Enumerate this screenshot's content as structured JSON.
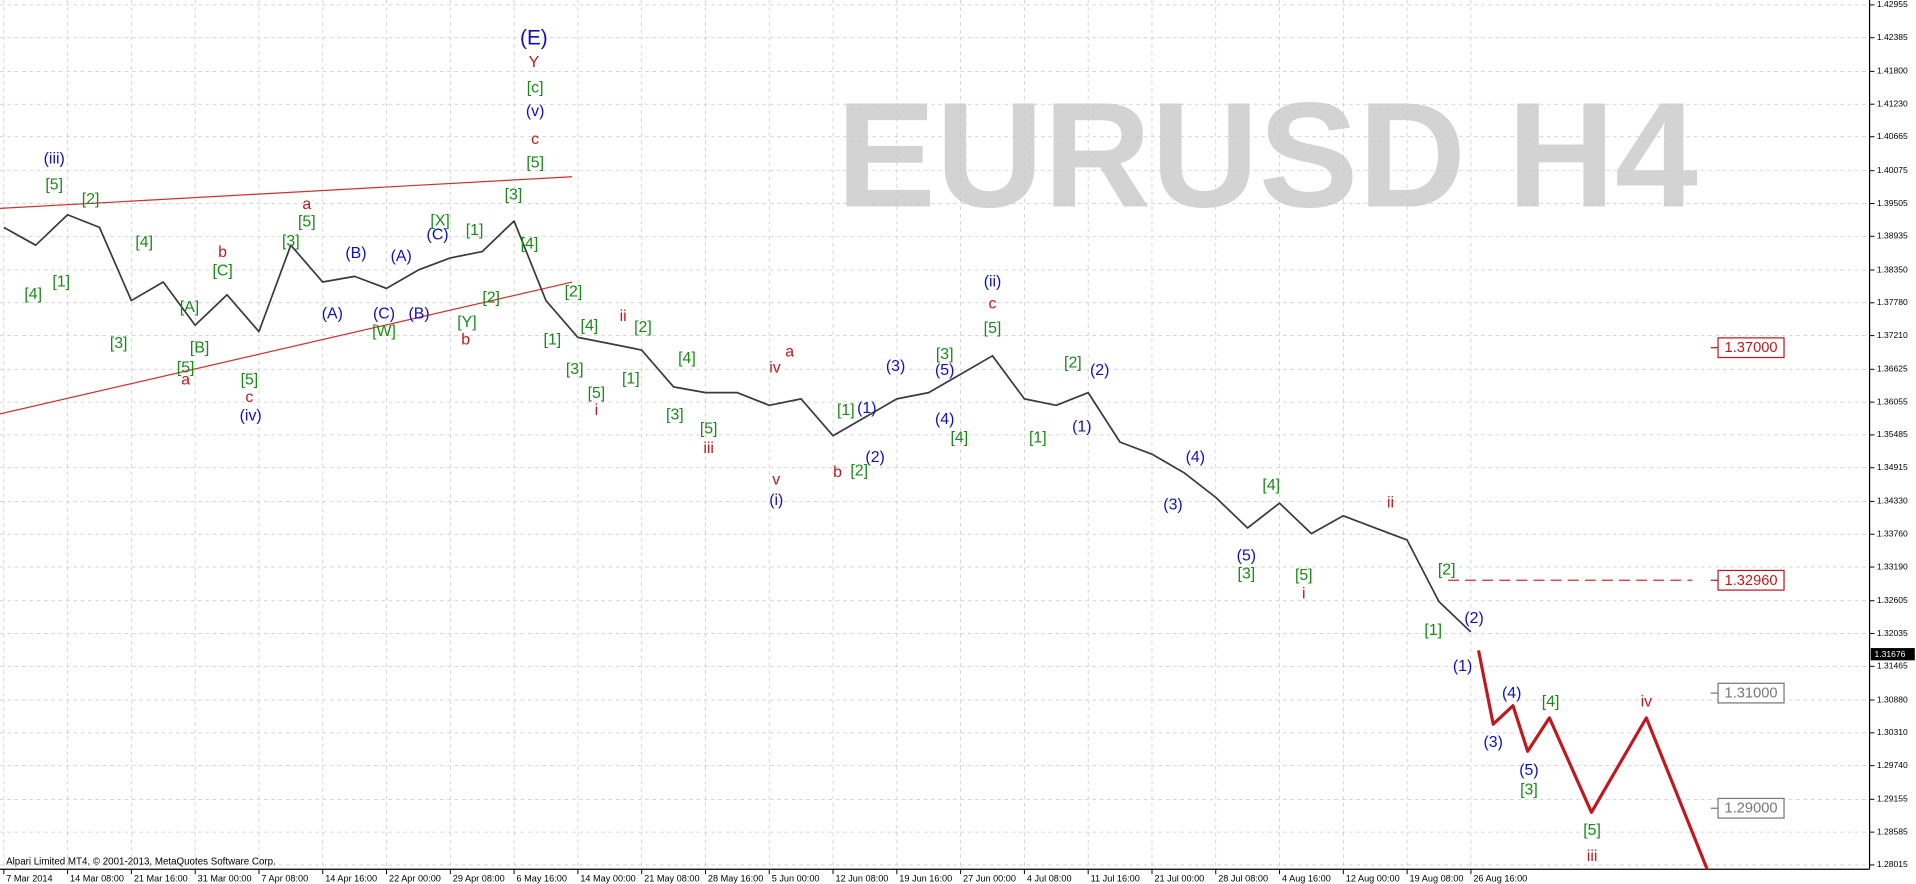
{
  "chart_data": {
    "type": "line",
    "watermark": "EURUSD H4",
    "footer": "Alpari Limited MT4, © 2001-2013, MetaQuotes Software Corp.",
    "xlim": [
      -0.06,
      29.25
    ],
    "ylim": [
      1.2794,
      1.4304
    ],
    "grid": true,
    "xticks": [
      {
        "value": 0,
        "label": "7 Mar 2014"
      },
      {
        "value": 1,
        "label": "14 Mar 08:00"
      },
      {
        "value": 2,
        "label": "21 Mar 16:00"
      },
      {
        "value": 3,
        "label": "31 Mar 00:00"
      },
      {
        "value": 4,
        "label": "7 Apr 08:00"
      },
      {
        "value": 5,
        "label": "14 Apr 16:00"
      },
      {
        "value": 6,
        "label": "22 Apr 00:00"
      },
      {
        "value": 7,
        "label": "29 Apr 08:00"
      },
      {
        "value": 8,
        "label": "6 May 16:00"
      },
      {
        "value": 9,
        "label": "14 May 00:00"
      },
      {
        "value": 10,
        "label": "21 May 08:00"
      },
      {
        "value": 11,
        "label": "28 May 16:00"
      },
      {
        "value": 12,
        "label": "5 Jun 00:00"
      },
      {
        "value": 13,
        "label": "12 Jun 08:00"
      },
      {
        "value": 14,
        "label": "19 Jun 16:00"
      },
      {
        "value": 15,
        "label": "27 Jun 00:00"
      },
      {
        "value": 16,
        "label": "4 Jul 08:00"
      },
      {
        "value": 17,
        "label": "11 Jul 16:00"
      },
      {
        "value": 18,
        "label": "21 Jul 00:00"
      },
      {
        "value": 19,
        "label": "28 Jul 08:00"
      },
      {
        "value": 20,
        "label": "4 Aug 16:00"
      },
      {
        "value": 21,
        "label": "12 Aug 00:00"
      },
      {
        "value": 22,
        "label": "19 Aug 08:00"
      },
      {
        "value": 23,
        "label": "26 Aug 16:00"
      }
    ],
    "yticks": [
      1.42955,
      1.42385,
      {
        "value": 1.418,
        "label": "1.41800"
      },
      {
        "value": 1.4123,
        "label": "1.41230"
      },
      1.40665,
      1.40075,
      1.39505,
      1.38935,
      {
        "value": 1.3835,
        "label": "1.38350"
      },
      {
        "value": 1.3778,
        "label": "1.37780"
      },
      {
        "value": 1.3721,
        "label": "1.37210"
      },
      1.36625,
      1.36055,
      1.35485,
      1.34915,
      {
        "value": 1.3433,
        "label": "1.34330"
      },
      {
        "value": 1.3376,
        "label": "1.33760"
      },
      {
        "value": 1.3319,
        "label": "1.33190"
      },
      1.32605,
      1.32035,
      1.31465,
      {
        "value": 1.3088,
        "label": "1.30880"
      },
      {
        "value": 1.3031,
        "label": "1.30310"
      },
      {
        "value": 1.2974,
        "label": "1.29740"
      },
      1.29155,
      1.28585,
      1.28015
    ],
    "series": [
      {
        "color": "#3a3a3a",
        "x": [
          0,
          0.5,
          1,
          1.5,
          2,
          2.5,
          3,
          3.5,
          4,
          4.5,
          5,
          5.5,
          6,
          6.5,
          7,
          7.5,
          8,
          8.5,
          9,
          9.5,
          10,
          10.5,
          11,
          11.5,
          12,
          12.5,
          13,
          13.5,
          14,
          14.5,
          15,
          15.5,
          16,
          16.5,
          17,
          17.5,
          18,
          18.5,
          19,
          19.5,
          20,
          20.5,
          21,
          21.5,
          22,
          22.5,
          23
        ],
        "values": [
          1.3909,
          1.3878,
          1.3931,
          1.3909,
          1.3782,
          1.3814,
          1.3739,
          1.3792,
          1.3728,
          1.3878,
          1.3814,
          1.3824,
          1.3803,
          1.3835,
          1.3856,
          1.3867,
          1.392,
          1.3782,
          1.3718,
          1.3707,
          1.3696,
          1.3632,
          1.3622,
          1.3622,
          1.36,
          1.3611,
          1.3547,
          1.3579,
          1.3611,
          1.3622,
          1.3654,
          1.3686,
          1.3611,
          1.36,
          1.3622,
          1.3536,
          1.3515,
          1.3483,
          1.344,
          1.3387,
          1.343,
          1.3377,
          1.3408,
          1.3387,
          1.3366,
          1.3259,
          1.3206
        ]
      },
      {
        "color": "#c0181e",
        "x": [
          23.12,
          23.35,
          23.66,
          23.89,
          24.23,
          24.89,
          25.75,
          26.72
        ],
        "values": [
          1.3174,
          1.3046,
          1.3078,
          1.2999,
          1.3057,
          1.2893,
          1.3057,
          1.279
        ]
      }
    ],
    "trend_lines": [
      {
        "color": "#d03030",
        "x": [
          -0.06,
          8.91
        ],
        "values": [
          1.3942,
          1.3997
        ]
      },
      {
        "color": "#d03030",
        "x": [
          -0.06,
          8.91
        ],
        "values": [
          1.3585,
          1.3814
        ]
      }
    ],
    "dashed_line": {
      "color": "#d03030",
      "x": [
        22.64,
        26.47
      ],
      "value": 1.3296
    },
    "levels": [
      {
        "value": 1.37,
        "label": "1.37000",
        "color": "#c0181e"
      },
      {
        "value": 1.3296,
        "label": "1.32960",
        "color": "#c0181e"
      },
      {
        "value": 1.31,
        "label": "1.31000",
        "color": "#777777"
      },
      {
        "value": 1.29,
        "label": "1.29000",
        "color": "#777777"
      }
    ],
    "current_price": 1.31676,
    "annotations": [
      {
        "text": "(E)",
        "x": 8.31,
        "y": 1.4236,
        "color": "#1010c0"
      },
      {
        "text": "Y",
        "x": 8.31,
        "y": 1.4195,
        "color": "#c0181e"
      },
      {
        "text": "[c]",
        "x": 8.33,
        "y": 1.4151,
        "color": "#178a17"
      },
      {
        "text": "(v)",
        "x": 8.33,
        "y": 1.411,
        "color": "#1010c0"
      },
      {
        "text": "c",
        "x": 8.33,
        "y": 1.4061,
        "color": "#c0181e"
      },
      {
        "text": "[5]",
        "x": 8.33,
        "y": 1.402,
        "color": "#178a17"
      },
      {
        "text": "(iii)",
        "x": 0.79,
        "y": 1.4027,
        "color": "#1010c0"
      },
      {
        "text": "[5]",
        "x": 0.79,
        "y": 1.3982,
        "color": "#178a17"
      },
      {
        "text": "[2]",
        "x": 1.36,
        "y": 1.3957,
        "color": "#178a17"
      },
      {
        "text": "[4]",
        "x": 0.46,
        "y": 1.3792,
        "color": "#178a17"
      },
      {
        "text": "[1]",
        "x": 0.9,
        "y": 1.3814,
        "color": "#178a17"
      },
      {
        "text": "[4]",
        "x": 2.2,
        "y": 1.3882,
        "color": "#178a17"
      },
      {
        "text": "[3]",
        "x": 1.8,
        "y": 1.3707,
        "color": "#178a17"
      },
      {
        "text": "b",
        "x": 3.43,
        "y": 1.3865,
        "color": "#c0181e"
      },
      {
        "text": "[C]",
        "x": 3.43,
        "y": 1.3833,
        "color": "#178a17"
      },
      {
        "text": "[A]",
        "x": 2.91,
        "y": 1.3769,
        "color": "#178a17"
      },
      {
        "text": "[B]",
        "x": 3.07,
        "y": 1.3699,
        "color": "#178a17"
      },
      {
        "text": "[5]",
        "x": 2.85,
        "y": 1.3664,
        "color": "#178a17"
      },
      {
        "text": "a",
        "x": 2.85,
        "y": 1.3643,
        "color": "#c0181e"
      },
      {
        "text": "[5]",
        "x": 3.85,
        "y": 1.3643,
        "color": "#178a17"
      },
      {
        "text": "c",
        "x": 3.85,
        "y": 1.3613,
        "color": "#c0181e"
      },
      {
        "text": "(iv)",
        "x": 3.87,
        "y": 1.3581,
        "color": "#1010c0"
      },
      {
        "text": "a",
        "x": 4.75,
        "y": 1.3948,
        "color": "#c0181e"
      },
      {
        "text": "[5]",
        "x": 4.75,
        "y": 1.3918,
        "color": "#178a17"
      },
      {
        "text": "[3]",
        "x": 4.5,
        "y": 1.3884,
        "color": "#178a17"
      },
      {
        "text": "(B)",
        "x": 5.52,
        "y": 1.3863,
        "color": "#1010c0"
      },
      {
        "text": "(A)",
        "x": 5.15,
        "y": 1.3758,
        "color": "#1010c0"
      },
      {
        "text": "(A)",
        "x": 6.23,
        "y": 1.3858,
        "color": "#1010c0"
      },
      {
        "text": "(C)",
        "x": 5.96,
        "y": 1.3758,
        "color": "#1010c0"
      },
      {
        "text": "[W]",
        "x": 5.96,
        "y": 1.3728,
        "color": "#178a17"
      },
      {
        "text": "(B)",
        "x": 6.51,
        "y": 1.3758,
        "color": "#1010c0"
      },
      {
        "text": "(C)",
        "x": 6.8,
        "y": 1.3895,
        "color": "#1010c0"
      },
      {
        "text": "[X]",
        "x": 6.84,
        "y": 1.392,
        "color": "#178a17"
      },
      {
        "text": "[Y]",
        "x": 7.26,
        "y": 1.3743,
        "color": "#178a17"
      },
      {
        "text": "b",
        "x": 7.24,
        "y": 1.3713,
        "color": "#c0181e"
      },
      {
        "text": "[1]",
        "x": 7.38,
        "y": 1.3903,
        "color": "#178a17"
      },
      {
        "text": "[2]",
        "x": 7.64,
        "y": 1.3786,
        "color": "#178a17"
      },
      {
        "text": "[3]",
        "x": 7.99,
        "y": 1.3965,
        "color": "#178a17"
      },
      {
        "text": "[4]",
        "x": 8.24,
        "y": 1.388,
        "color": "#178a17"
      },
      {
        "text": "[2]",
        "x": 8.93,
        "y": 1.3796,
        "color": "#178a17"
      },
      {
        "text": "[1]",
        "x": 8.6,
        "y": 1.3713,
        "color": "#178a17"
      },
      {
        "text": "[4]",
        "x": 9.18,
        "y": 1.3737,
        "color": "#178a17"
      },
      {
        "text": "[3]",
        "x": 8.95,
        "y": 1.3662,
        "color": "#178a17"
      },
      {
        "text": "[5]",
        "x": 9.29,
        "y": 1.362,
        "color": "#178a17"
      },
      {
        "text": "i",
        "x": 9.29,
        "y": 1.359,
        "color": "#c0181e"
      },
      {
        "text": "ii",
        "x": 9.71,
        "y": 1.3754,
        "color": "#c0181e"
      },
      {
        "text": "[2]",
        "x": 10.02,
        "y": 1.3735,
        "color": "#178a17"
      },
      {
        "text": "[1]",
        "x": 9.83,
        "y": 1.3645,
        "color": "#178a17"
      },
      {
        "text": "[4]",
        "x": 10.71,
        "y": 1.3681,
        "color": "#178a17"
      },
      {
        "text": "[3]",
        "x": 10.52,
        "y": 1.3583,
        "color": "#178a17"
      },
      {
        "text": "[5]",
        "x": 11.05,
        "y": 1.3558,
        "color": "#178a17"
      },
      {
        "text": "iii",
        "x": 11.05,
        "y": 1.3524,
        "color": "#c0181e"
      },
      {
        "text": "iv",
        "x": 12.09,
        "y": 1.3664,
        "color": "#c0181e"
      },
      {
        "text": "a",
        "x": 12.32,
        "y": 1.3692,
        "color": "#c0181e"
      },
      {
        "text": "v",
        "x": 12.11,
        "y": 1.347,
        "color": "#c0181e"
      },
      {
        "text": "(i)",
        "x": 12.11,
        "y": 1.3434,
        "color": "#1010c0"
      },
      {
        "text": "b",
        "x": 13.07,
        "y": 1.3483,
        "color": "#c0181e"
      },
      {
        "text": "[2]",
        "x": 13.41,
        "y": 1.3485,
        "color": "#178a17"
      },
      {
        "text": "[1]",
        "x": 13.2,
        "y": 1.359,
        "color": "#178a17"
      },
      {
        "text": "(1)",
        "x": 13.53,
        "y": 1.3594,
        "color": "#1010c0"
      },
      {
        "text": "(2)",
        "x": 13.66,
        "y": 1.3509,
        "color": "#1010c0"
      },
      {
        "text": "(3)",
        "x": 13.98,
        "y": 1.3667,
        "color": "#1010c0"
      },
      {
        "text": "[3]",
        "x": 14.75,
        "y": 1.3688,
        "color": "#178a17"
      },
      {
        "text": "(5)",
        "x": 14.75,
        "y": 1.366,
        "color": "#1010c0"
      },
      {
        "text": "(4)",
        "x": 14.75,
        "y": 1.3575,
        "color": "#1010c0"
      },
      {
        "text": "[4]",
        "x": 14.98,
        "y": 1.3543,
        "color": "#178a17"
      },
      {
        "text": "(ii)",
        "x": 15.5,
        "y": 1.3814,
        "color": "#1010c0"
      },
      {
        "text": "c",
        "x": 15.5,
        "y": 1.3775,
        "color": "#c0181e"
      },
      {
        "text": "[5]",
        "x": 15.5,
        "y": 1.3733,
        "color": "#178a17"
      },
      {
        "text": "[2]",
        "x": 16.76,
        "y": 1.3673,
        "color": "#178a17"
      },
      {
        "text": "(2)",
        "x": 17.18,
        "y": 1.366,
        "color": "#1010c0"
      },
      {
        "text": "(1)",
        "x": 16.9,
        "y": 1.3562,
        "color": "#1010c0"
      },
      {
        "text": "[1]",
        "x": 16.21,
        "y": 1.3543,
        "color": "#178a17"
      },
      {
        "text": "(4)",
        "x": 18.68,
        "y": 1.3509,
        "color": "#1010c0"
      },
      {
        "text": "(3)",
        "x": 18.33,
        "y": 1.3426,
        "color": "#1010c0"
      },
      {
        "text": "(5)",
        "x": 19.48,
        "y": 1.3338,
        "color": "#1010c0"
      },
      {
        "text": "[3]",
        "x": 19.48,
        "y": 1.3306,
        "color": "#178a17"
      },
      {
        "text": "[4]",
        "x": 19.87,
        "y": 1.346,
        "color": "#178a17"
      },
      {
        "text": "[5]",
        "x": 20.38,
        "y": 1.3304,
        "color": "#178a17"
      },
      {
        "text": "i",
        "x": 20.38,
        "y": 1.3272,
        "color": "#c0181e"
      },
      {
        "text": "ii",
        "x": 21.74,
        "y": 1.343,
        "color": "#c0181e"
      },
      {
        "text": "[2]",
        "x": 22.62,
        "y": 1.3313,
        "color": "#178a17"
      },
      {
        "text": "[1]",
        "x": 22.41,
        "y": 1.3208,
        "color": "#178a17"
      },
      {
        "text": "(2)",
        "x": 23.05,
        "y": 1.3229,
        "color": "#1010c0"
      },
      {
        "text": "(1)",
        "x": 22.87,
        "y": 1.3146,
        "color": "#1010c0"
      },
      {
        "text": "(4)",
        "x": 23.64,
        "y": 1.3099,
        "color": "#1010c0"
      },
      {
        "text": "(3)",
        "x": 23.35,
        "y": 1.3014,
        "color": "#1010c0"
      },
      {
        "text": "[4]",
        "x": 24.25,
        "y": 1.3084,
        "color": "#178a17"
      },
      {
        "text": "(5)",
        "x": 23.91,
        "y": 1.2965,
        "color": "#1010c0"
      },
      {
        "text": "[3]",
        "x": 23.91,
        "y": 1.2931,
        "color": "#178a17"
      },
      {
        "text": "[5]",
        "x": 24.9,
        "y": 1.2861,
        "color": "#178a17"
      },
      {
        "text": "iii",
        "x": 24.9,
        "y": 1.2816,
        "color": "#c0181e"
      },
      {
        "text": "iv",
        "x": 25.75,
        "y": 1.3084,
        "color": "#c0181e"
      }
    ]
  }
}
